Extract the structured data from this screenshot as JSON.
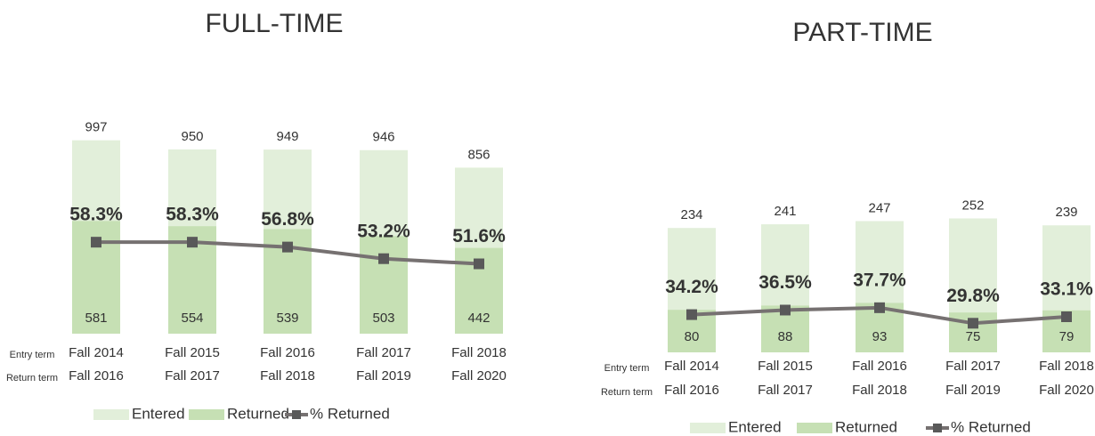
{
  "chart_data": [
    {
      "type": "bar_line",
      "title": "FULL-TIME",
      "category_label": "Entry term",
      "category2_label": "Return term",
      "categories": [
        "Fall 2014",
        "Fall 2015",
        "Fall 2016",
        "Fall 2017",
        "Fall 2018"
      ],
      "categories2": [
        "Fall 2016",
        "Fall 2017",
        "Fall 2018",
        "Fall 2019",
        "Fall 2020"
      ],
      "ylim": [
        0,
        1000
      ],
      "y2lim": [
        30,
        90
      ],
      "series": [
        {
          "name": "Entered",
          "color": "#e2efda",
          "values": [
            997,
            950,
            949,
            946,
            856
          ]
        },
        {
          "name": "Returned",
          "color": "#c6e0b4",
          "values": [
            581,
            554,
            539,
            503,
            442
          ]
        },
        {
          "name": "% Returned",
          "color": "#767171",
          "axis": "y2",
          "values": [
            58.3,
            58.3,
            56.8,
            53.2,
            51.6
          ],
          "value_labels": [
            "58.3%",
            "58.3%",
            "56.8%",
            "53.2%",
            "51.6%"
          ]
        }
      ]
    },
    {
      "type": "bar_line",
      "title": "PART-TIME",
      "category_label": "Entry term",
      "category2_label": "Return term",
      "categories": [
        "Fall 2014",
        "Fall 2015",
        "Fall 2016",
        "Fall 2017",
        "Fall 2018"
      ],
      "categories2": [
        "Fall 2016",
        "Fall 2017",
        "Fall 2018",
        "Fall 2019",
        "Fall 2020"
      ],
      "ylim": [
        0,
        370
      ],
      "y2lim": [
        15,
        115
      ],
      "series": [
        {
          "name": "Entered",
          "color": "#e2efda",
          "values": [
            234,
            241,
            247,
            252,
            239
          ]
        },
        {
          "name": "Returned",
          "color": "#c6e0b4",
          "values": [
            80,
            88,
            93,
            75,
            79
          ]
        },
        {
          "name": "% Returned",
          "color": "#767171",
          "axis": "y2",
          "values": [
            34.2,
            36.5,
            37.7,
            29.8,
            33.1
          ],
          "value_labels": [
            "34.2%",
            "36.5%",
            "37.7%",
            "29.8%",
            "33.1%"
          ]
        }
      ]
    }
  ]
}
